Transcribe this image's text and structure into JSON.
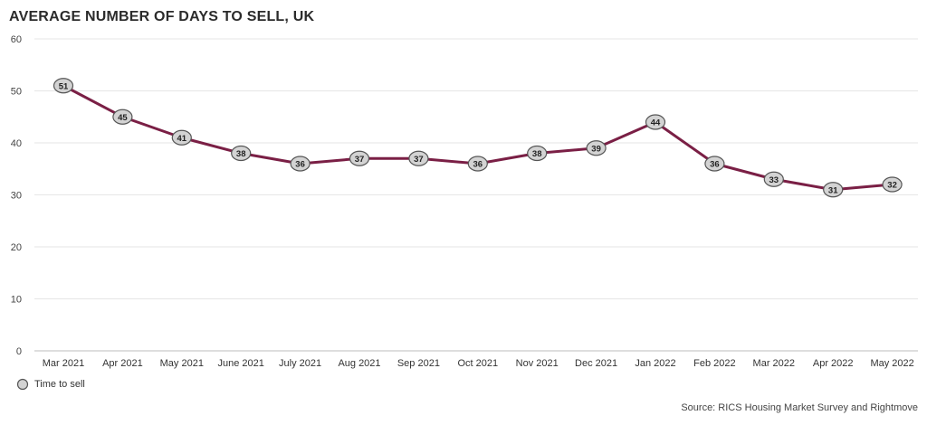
{
  "chart_data": {
    "type": "line",
    "title": "AVERAGE NUMBER OF DAYS TO SELL, UK",
    "categories": [
      "Mar 2021",
      "Apr 2021",
      "May 2021",
      "June 2021",
      "July 2021",
      "Aug 2021",
      "Sep 2021",
      "Oct 2021",
      "Nov 2021",
      "Dec 2021",
      "Jan 2022",
      "Feb 2022",
      "Mar 2022",
      "Apr 2022",
      "May 2022"
    ],
    "series": [
      {
        "name": "Time to sell",
        "values": [
          51,
          45,
          41,
          38,
          36,
          37,
          37,
          36,
          38,
          39,
          44,
          36,
          33,
          31,
          32
        ]
      }
    ],
    "ylim": [
      0,
      60
    ],
    "yticks": [
      0,
      10,
      20,
      30,
      40,
      50,
      60
    ],
    "grid": true,
    "legend": "bottom-left",
    "source": "Source: RICS Housing Market Survey and Rightmove",
    "colors": {
      "line": "#7a1f45",
      "marker_fill": "#d3d3d3",
      "marker_stroke": "#555555",
      "grid": "#e6e6e6"
    }
  }
}
